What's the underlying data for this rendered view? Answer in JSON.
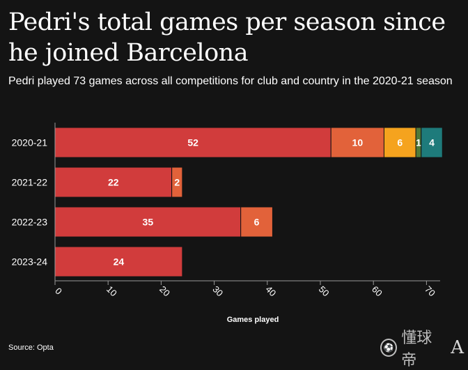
{
  "title": "Pedri's total games per season since he joined Barcelona",
  "subtitle": "Pedri played 73 games across all competitions for club and country in the 2020-21 season",
  "source": "Source: Opta",
  "watermark": {
    "text": "懂球帝",
    "logo_letter": "A"
  },
  "chart_data": {
    "type": "bar",
    "orientation": "horizontal",
    "stacked": true,
    "categories": [
      "2020-21",
      "2021-22",
      "2022-23",
      "2023-24"
    ],
    "series": [
      {
        "color": "#d13c3c",
        "values": [
          52,
          22,
          35,
          24
        ]
      },
      {
        "color": "#e2623a",
        "values": [
          10,
          2,
          6,
          0
        ]
      },
      {
        "color": "#f5a31e",
        "values": [
          6,
          0,
          0,
          0
        ]
      },
      {
        "color": "#4f7a3a",
        "values": [
          1,
          0,
          0,
          0
        ]
      },
      {
        "color": "#1e7b7b",
        "values": [
          4,
          0,
          0,
          0
        ]
      }
    ],
    "xlabel": "Games played",
    "xlim": [
      0,
      73
    ],
    "xticks": [
      0,
      10,
      20,
      30,
      40,
      50,
      60,
      70
    ]
  }
}
